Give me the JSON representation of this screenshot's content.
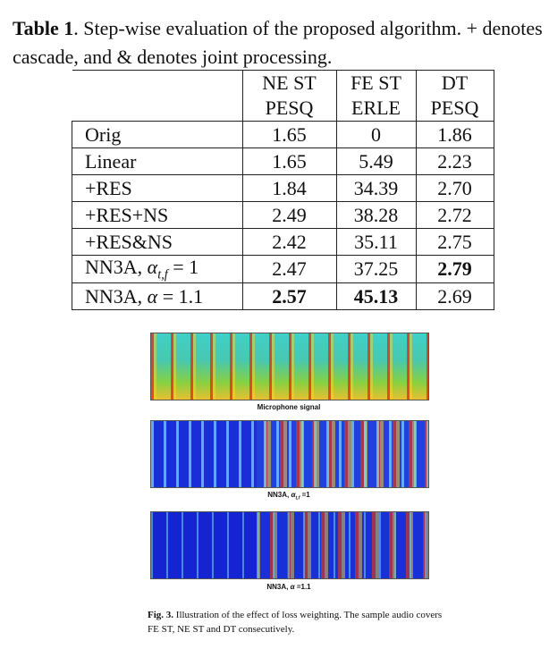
{
  "caption": {
    "label": "Table 1",
    "text": ". Step-wise evaluation of the proposed algorithm. + denotes cascade, and & denotes joint processing."
  },
  "table": {
    "header": [
      [
        "NE ST",
        "FE ST",
        "DT"
      ],
      [
        "PESQ",
        "ERLE",
        "PESQ"
      ]
    ],
    "rows": [
      {
        "label": {
          "text": "Orig"
        },
        "cells": [
          "1.65",
          "0",
          "1.86"
        ],
        "bold": []
      },
      {
        "label": {
          "text": "Linear"
        },
        "cells": [
          "1.65",
          "5.49",
          "2.23"
        ],
        "bold": []
      },
      {
        "label": {
          "text": "+RES"
        },
        "cells": [
          "1.84",
          "34.39",
          "2.70"
        ],
        "bold": []
      },
      {
        "label": {
          "text": "+RES+NS"
        },
        "cells": [
          "2.49",
          "38.28",
          "2.72"
        ],
        "bold": []
      },
      {
        "label": {
          "text": "+RES&NS"
        },
        "cells": [
          "2.42",
          "35.11",
          "2.75"
        ],
        "bold": []
      },
      {
        "label": {
          "text": "NN3A,",
          "math": "α",
          "sub": "t,f",
          "rhs": "= 1"
        },
        "cells": [
          "2.47",
          "37.25",
          "2.79"
        ],
        "bold": [
          2
        ]
      },
      {
        "label": {
          "text": "NN3A,",
          "math": "α",
          "rhs": "= 1.1"
        },
        "cells": [
          "2.57",
          "45.13",
          "2.69"
        ],
        "bold": [
          0,
          1
        ]
      }
    ]
  },
  "figure": {
    "panels": [
      {
        "label": {
          "text": "Microphone signal"
        }
      },
      {
        "label": {
          "text": "NN3A,",
          "math": "α",
          "sub": "t,f",
          "rhs": "=1"
        }
      },
      {
        "label": {
          "text": "NN3A,",
          "math": "α",
          "rhs": "=1.1"
        }
      }
    ],
    "caption": {
      "label": "Fig. 3.",
      "text": "Illustration of the effect of loss weighting. The sample audio covers FE ST, NE ST and DT consecutively."
    }
  }
}
